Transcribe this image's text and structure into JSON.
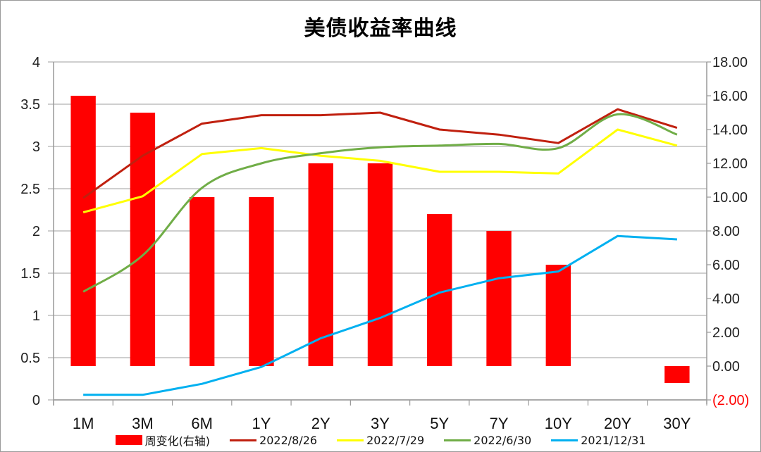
{
  "chart_data": {
    "type": "bar+line",
    "title": "美债收益率曲线",
    "categories": [
      "1M",
      "3M",
      "6M",
      "1Y",
      "2Y",
      "3Y",
      "5Y",
      "7Y",
      "10Y",
      "20Y",
      "30Y"
    ],
    "left_axis": {
      "min": 0,
      "max": 4,
      "step": 0.5,
      "ticks": [
        "0",
        "0.5",
        "1",
        "1.5",
        "2",
        "2.5",
        "3",
        "3.5",
        "4"
      ]
    },
    "right_axis": {
      "min": -2,
      "max": 18,
      "step": 2,
      "ticks": [
        "(2.00)",
        "0.00",
        "2.00",
        "4.00",
        "6.00",
        "8.00",
        "10.00",
        "12.00",
        "14.00",
        "16.00",
        "18.00"
      ],
      "negative_color": "#ff0000"
    },
    "series": [
      {
        "name": "周变化(右轴)",
        "kind": "bar",
        "axis": "right",
        "color": "#ff0000",
        "values": [
          16.0,
          15.0,
          10.0,
          10.0,
          12.0,
          12.0,
          9.0,
          8.0,
          6.0,
          0.0,
          -1.0
        ]
      },
      {
        "name": "2022/8/26",
        "kind": "line",
        "axis": "left",
        "color": "#c0200f",
        "values": [
          2.39,
          2.89,
          3.27,
          3.37,
          3.37,
          3.4,
          3.2,
          3.14,
          3.04,
          3.44,
          3.22
        ]
      },
      {
        "name": "2022/7/29",
        "kind": "line",
        "axis": "left",
        "color": "#ffff00",
        "values": [
          2.22,
          2.41,
          2.91,
          2.98,
          2.89,
          2.83,
          2.7,
          2.7,
          2.68,
          3.2,
          3.01
        ]
      },
      {
        "name": "2022/6/30",
        "kind": "line",
        "axis": "left",
        "color": "#70ad47",
        "smooth": true,
        "values": [
          1.28,
          1.71,
          2.51,
          2.8,
          2.92,
          2.99,
          3.01,
          3.03,
          2.98,
          3.38,
          3.14
        ]
      },
      {
        "name": "2021/12/31",
        "kind": "line",
        "axis": "left",
        "color": "#00b0f0",
        "values": [
          0.06,
          0.06,
          0.19,
          0.39,
          0.73,
          0.97,
          1.27,
          1.44,
          1.52,
          1.94,
          1.9
        ]
      }
    ],
    "grid": true,
    "legend_position": "bottom"
  },
  "legend": [
    {
      "label": "周变化(右轴)",
      "color": "#ff0000",
      "kind": "bar"
    },
    {
      "label": "2022/8/26",
      "color": "#c0200f",
      "kind": "line"
    },
    {
      "label": "2022/7/29",
      "color": "#ffff00",
      "kind": "line"
    },
    {
      "label": "2022/6/30",
      "color": "#70ad47",
      "kind": "line"
    },
    {
      "label": "2021/12/31",
      "color": "#00b0f0",
      "kind": "line"
    }
  ]
}
